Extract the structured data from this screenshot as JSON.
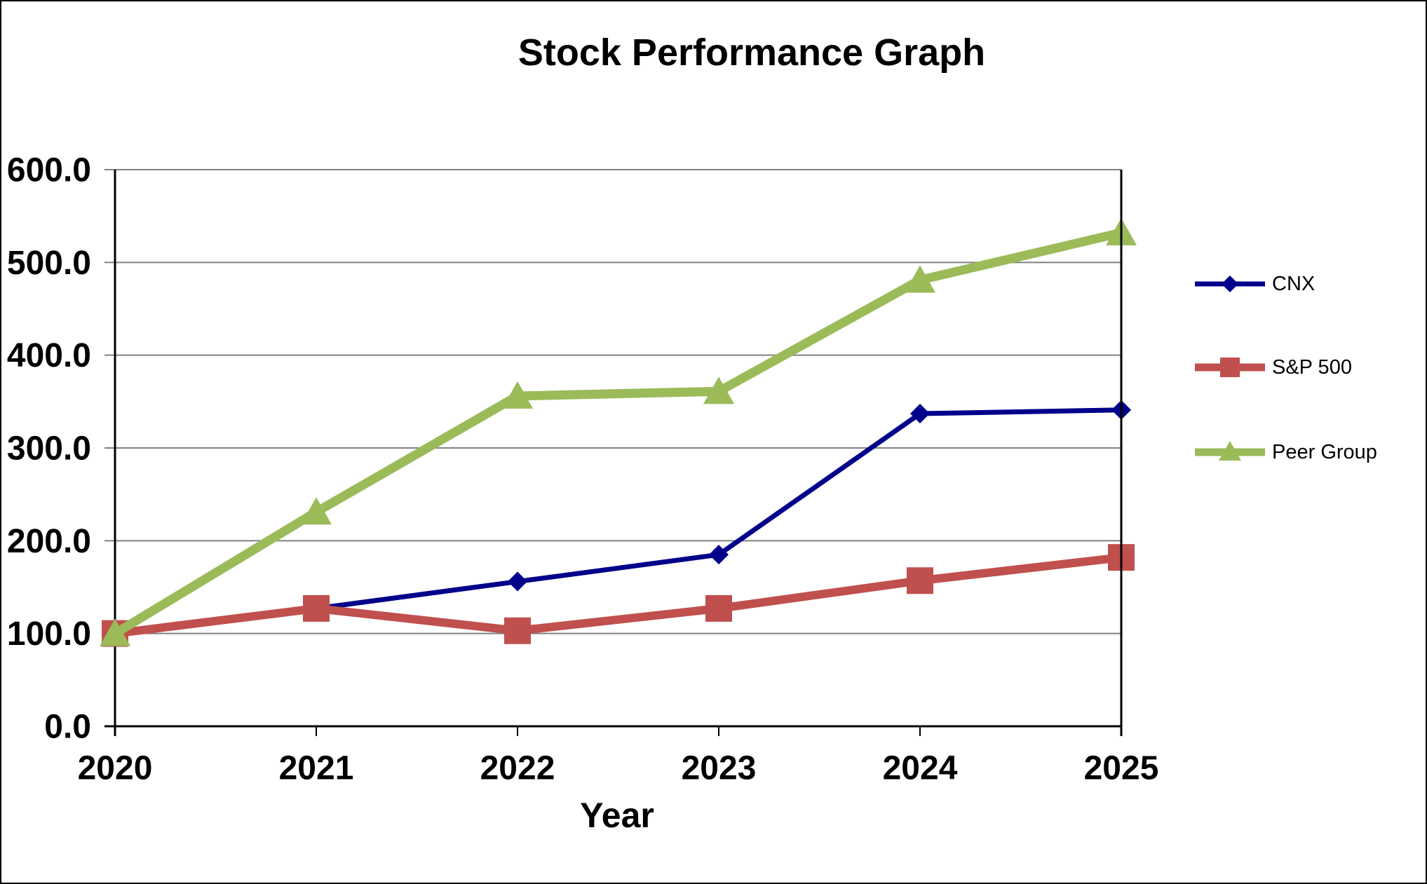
{
  "chart_data": {
    "type": "line",
    "title": "Stock Performance Graph",
    "xlabel": "Year",
    "x": [
      "2020",
      "2021",
      "2022",
      "2023",
      "2024",
      "2025"
    ],
    "ylim": [
      0,
      600
    ],
    "yticks": [
      600,
      500,
      400,
      300,
      200,
      100,
      0
    ],
    "ytick_decimals": 1,
    "grid": true,
    "legend_position": "right",
    "series": [
      {
        "name": "CNX",
        "color": "#00008B",
        "marker": "diamond",
        "line_width": 7,
        "values": [
          100,
          127,
          156,
          185,
          337,
          341
        ]
      },
      {
        "name": "S&P 500",
        "color": "#C0504D",
        "marker": "square",
        "line_width": 12,
        "values": [
          100,
          127,
          103,
          127,
          157,
          182
        ]
      },
      {
        "name": "Peer Group",
        "color": "#9BBB59",
        "marker": "triangle",
        "line_width": 13,
        "values": [
          100,
          231,
          356,
          361,
          481,
          532
        ]
      }
    ],
    "style": {
      "grid_color": "#808080",
      "axis_color": "#000000",
      "background": "#ffffff"
    }
  }
}
